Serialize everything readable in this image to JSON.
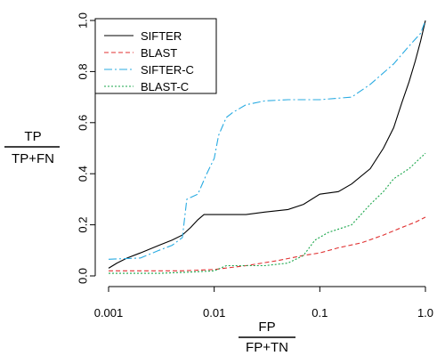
{
  "chart_data": {
    "type": "line",
    "x_scale": "log",
    "xlim": [
      0.001,
      1.0
    ],
    "ylim": [
      0.0,
      1.0
    ],
    "grid": false,
    "legend_position": "top-left",
    "xlabel_numerator": "FP",
    "xlabel_denominator": "FP+TN",
    "ylabel_numerator": "TP",
    "ylabel_denominator": "TP+FN",
    "x_ticks": [
      {
        "value": 0.001,
        "label": "0.001"
      },
      {
        "value": 0.01,
        "label": "0.01"
      },
      {
        "value": 0.1,
        "label": "0.1"
      },
      {
        "value": 1.0,
        "label": "1.0"
      }
    ],
    "y_ticks": [
      {
        "value": 0.0,
        "label": "0.0"
      },
      {
        "value": 0.2,
        "label": "0.2"
      },
      {
        "value": 0.4,
        "label": "0.4"
      },
      {
        "value": 0.6,
        "label": "0.6"
      },
      {
        "value": 0.8,
        "label": "0.8"
      },
      {
        "value": 1.0,
        "label": "1.0"
      }
    ],
    "series": [
      {
        "name": "SIFTER",
        "color": "#000000",
        "dash": "",
        "points": [
          [
            0.001,
            0.03
          ],
          [
            0.0012,
            0.05
          ],
          [
            0.0015,
            0.07
          ],
          [
            0.002,
            0.09
          ],
          [
            0.003,
            0.12
          ],
          [
            0.004,
            0.14
          ],
          [
            0.005,
            0.16
          ],
          [
            0.006,
            0.19
          ],
          [
            0.007,
            0.22
          ],
          [
            0.008,
            0.24
          ],
          [
            0.012,
            0.24
          ],
          [
            0.02,
            0.24
          ],
          [
            0.03,
            0.25
          ],
          [
            0.05,
            0.26
          ],
          [
            0.07,
            0.28
          ],
          [
            0.1,
            0.32
          ],
          [
            0.15,
            0.33
          ],
          [
            0.2,
            0.36
          ],
          [
            0.3,
            0.42
          ],
          [
            0.4,
            0.5
          ],
          [
            0.5,
            0.58
          ],
          [
            0.6,
            0.68
          ],
          [
            0.7,
            0.76
          ],
          [
            0.8,
            0.84
          ],
          [
            0.9,
            0.92
          ],
          [
            1.0,
            1.0
          ]
        ]
      },
      {
        "name": "BLAST",
        "color": "#e03030",
        "dash": "5,3",
        "points": [
          [
            0.001,
            0.02
          ],
          [
            0.002,
            0.02
          ],
          [
            0.005,
            0.02
          ],
          [
            0.01,
            0.025
          ],
          [
            0.02,
            0.04
          ],
          [
            0.04,
            0.06
          ],
          [
            0.07,
            0.08
          ],
          [
            0.1,
            0.09
          ],
          [
            0.15,
            0.11
          ],
          [
            0.25,
            0.13
          ],
          [
            0.4,
            0.16
          ],
          [
            0.6,
            0.19
          ],
          [
            0.8,
            0.21
          ],
          [
            1.0,
            0.23
          ]
        ]
      },
      {
        "name": "SIFTER-C",
        "color": "#29abe2",
        "dash": "9,3,2,3",
        "points": [
          [
            0.001,
            0.065
          ],
          [
            0.002,
            0.07
          ],
          [
            0.003,
            0.1
          ],
          [
            0.004,
            0.12
          ],
          [
            0.005,
            0.15
          ],
          [
            0.0055,
            0.3
          ],
          [
            0.007,
            0.32
          ],
          [
            0.0085,
            0.4
          ],
          [
            0.01,
            0.46
          ],
          [
            0.011,
            0.55
          ],
          [
            0.013,
            0.62
          ],
          [
            0.015,
            0.64
          ],
          [
            0.02,
            0.67
          ],
          [
            0.03,
            0.685
          ],
          [
            0.05,
            0.69
          ],
          [
            0.1,
            0.69
          ],
          [
            0.2,
            0.7
          ],
          [
            0.3,
            0.75
          ],
          [
            0.5,
            0.83
          ],
          [
            0.7,
            0.9
          ],
          [
            0.9,
            0.95
          ],
          [
            1.0,
            1.0
          ]
        ]
      },
      {
        "name": "BLAST-C",
        "color": "#1aa64b",
        "dash": "2,2",
        "points": [
          [
            0.001,
            0.01
          ],
          [
            0.003,
            0.01
          ],
          [
            0.006,
            0.015
          ],
          [
            0.01,
            0.02
          ],
          [
            0.013,
            0.04
          ],
          [
            0.03,
            0.04
          ],
          [
            0.05,
            0.05
          ],
          [
            0.07,
            0.08
          ],
          [
            0.09,
            0.14
          ],
          [
            0.12,
            0.17
          ],
          [
            0.2,
            0.2
          ],
          [
            0.3,
            0.28
          ],
          [
            0.4,
            0.33
          ],
          [
            0.5,
            0.38
          ],
          [
            0.7,
            0.42
          ],
          [
            1.0,
            0.48
          ]
        ]
      }
    ]
  }
}
